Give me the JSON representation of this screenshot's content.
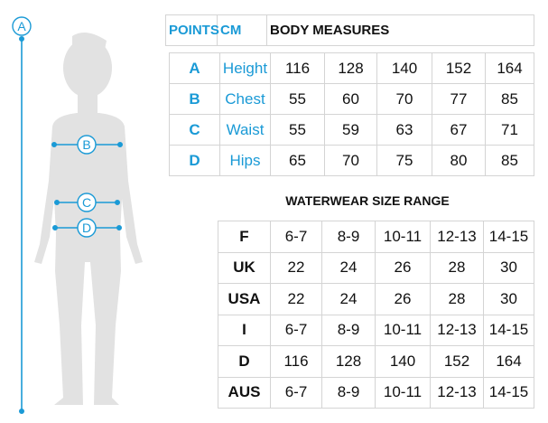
{
  "header": {
    "points": "POINTS",
    "cm": "CM",
    "title": "BODY MEASURES"
  },
  "body_measures": {
    "rows": [
      {
        "point": "A",
        "label": "Height",
        "values": [
          "116",
          "128",
          "140",
          "152",
          "164"
        ]
      },
      {
        "point": "B",
        "label": "Chest",
        "values": [
          "55",
          "60",
          "70",
          "77",
          "85"
        ]
      },
      {
        "point": "C",
        "label": "Waist",
        "values": [
          "55",
          "59",
          "63",
          "67",
          "71"
        ]
      },
      {
        "point": "D",
        "label": "Hips",
        "values": [
          "65",
          "70",
          "75",
          "80",
          "85"
        ]
      }
    ]
  },
  "waterwear": {
    "title": "WATERWEAR SIZE RANGE",
    "rows": [
      {
        "label": "F",
        "values": [
          "6-7",
          "8-9",
          "10-11",
          "12-13",
          "14-15"
        ]
      },
      {
        "label": "UK",
        "values": [
          "22",
          "24",
          "26",
          "28",
          "30"
        ]
      },
      {
        "label": "USA",
        "values": [
          "22",
          "24",
          "26",
          "28",
          "30"
        ]
      },
      {
        "label": "I",
        "values": [
          "6-7",
          "8-9",
          "10-11",
          "12-13",
          "14-15"
        ]
      },
      {
        "label": "D",
        "values": [
          "116",
          "128",
          "140",
          "152",
          "164"
        ]
      },
      {
        "label": "AUS",
        "values": [
          "6-7",
          "8-9",
          "10-11",
          "12-13",
          "14-15"
        ]
      }
    ]
  },
  "figure": {
    "markers": [
      "A",
      "B",
      "C",
      "D"
    ]
  },
  "colors": {
    "accent": "#1a9ad6",
    "silhouette": "#e2e2e2",
    "border": "#d4d4d4"
  }
}
